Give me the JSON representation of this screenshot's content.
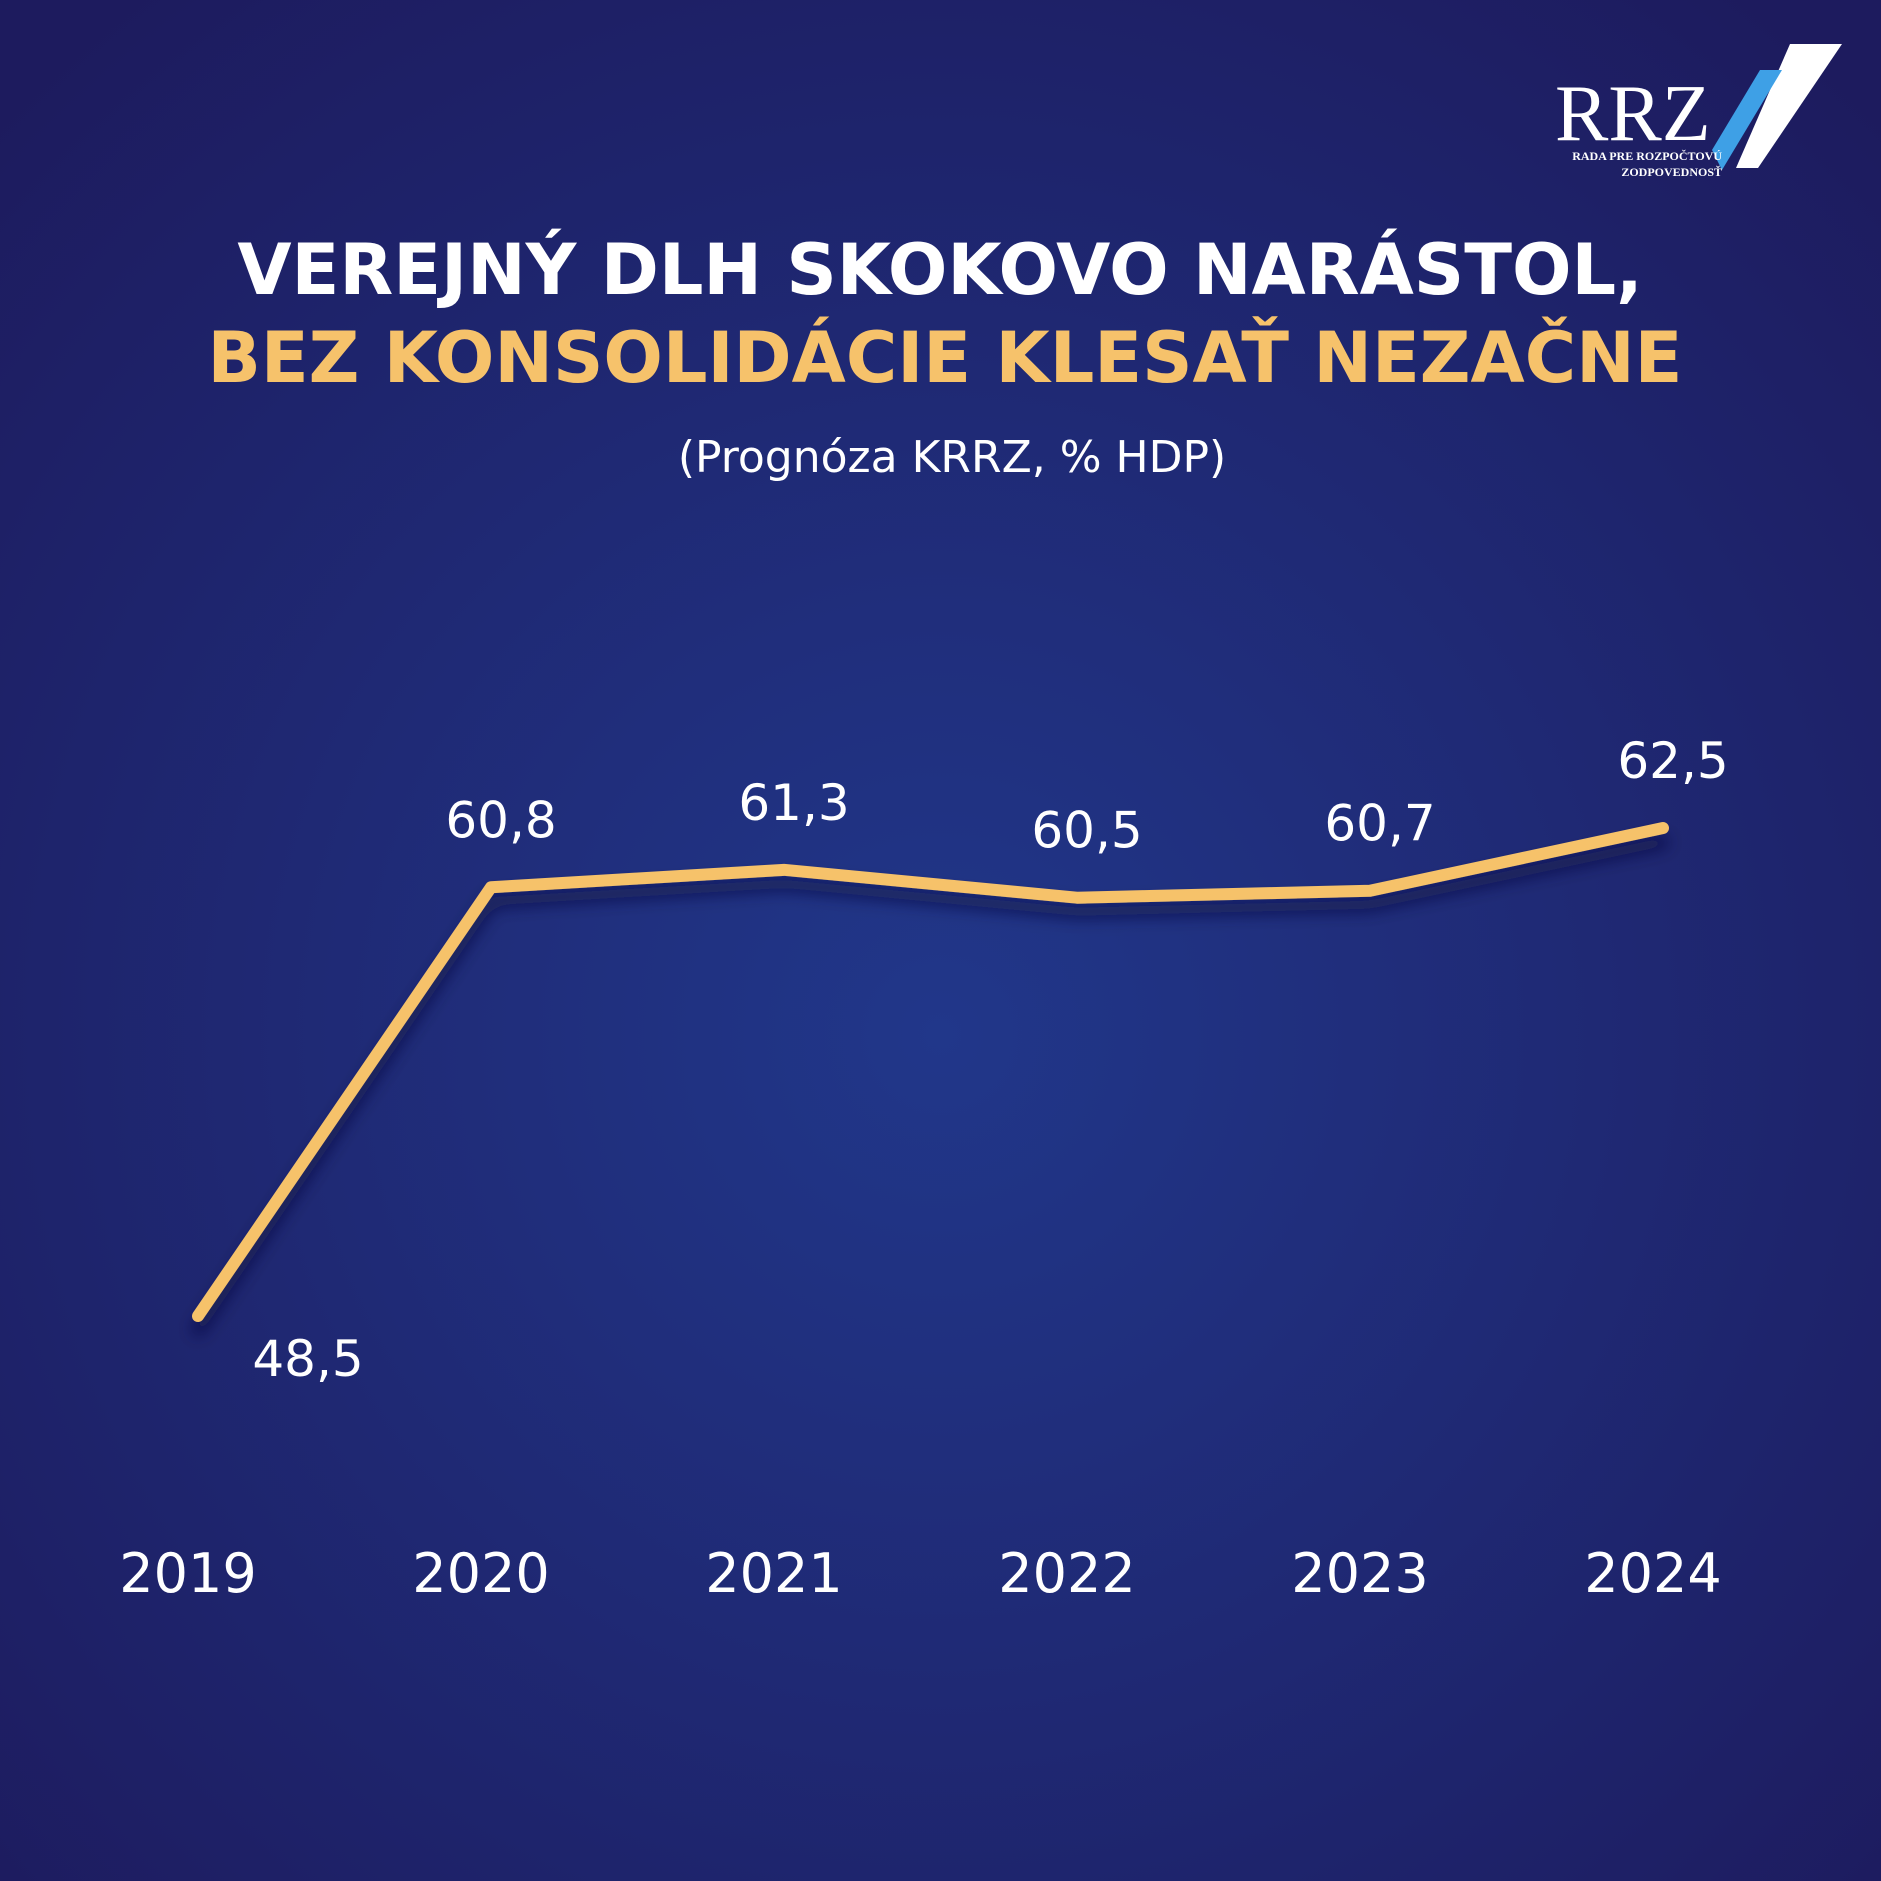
{
  "chart_data": {
    "type": "line",
    "title": "VEREJNÝ DLH SKOKOVO NARÁSTOL,",
    "title_line2": "BEZ KONSOLIDÁCIE KLESAŤ NEZAČNE",
    "subtitle": "(Prognóza KRRZ, % HDP)",
    "categories": [
      "2019",
      "2020",
      "2021",
      "2022",
      "2023",
      "2024"
    ],
    "values": [
      48.5,
      60.8,
      61.3,
      60.5,
      60.7,
      62.5
    ],
    "value_labels": [
      "48,5",
      "60,8",
      "61,3",
      "60,5",
      "60,7",
      "62,5"
    ],
    "color": "#f6c26b"
  },
  "logo": {
    "text": "RRZ",
    "line1": "RADA PRE ROZPOČTOVÚ",
    "line2": "ZODPOVEDNOSŤ"
  }
}
